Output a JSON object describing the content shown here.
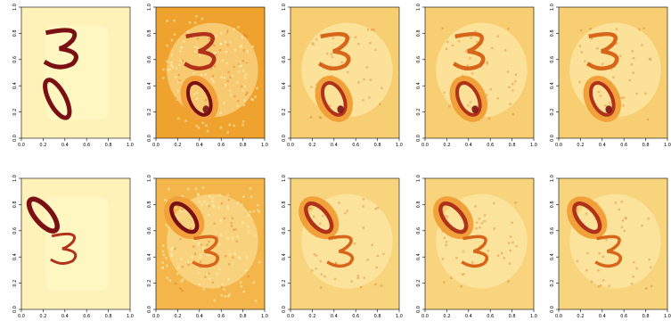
{
  "chart_data": {
    "type": "heatmap",
    "layout": {
      "rows": 2,
      "cols": 5
    },
    "x_ticks": [
      "0.0",
      "0.2",
      "0.4",
      "0.6",
      "0.8",
      "1.0"
    ],
    "y_ticks": [
      "0.0",
      "0.2",
      "0.4",
      "0.6",
      "0.8",
      "1.0"
    ],
    "xlim": [
      0,
      1
    ],
    "ylim": [
      0,
      1
    ],
    "palette": {
      "light": "#fff7c2",
      "pale": "#fde9a8",
      "mid": "#f6cb6e",
      "orange": "#f2a13a",
      "dark_orange": "#d7651a",
      "red": "#b0321a",
      "dark": "#7a0f14"
    },
    "panels": [
      {
        "row": 0,
        "col": 0,
        "kind": "input",
        "background": "#fff2b8",
        "digits": "3 over 0"
      },
      {
        "row": 0,
        "col": 1,
        "kind": "reconstruction",
        "background": "#f0a22f",
        "digits": "3 over 0"
      },
      {
        "row": 0,
        "col": 2,
        "kind": "reconstruction",
        "background": "#f7cf72",
        "digits": "3 over 0"
      },
      {
        "row": 0,
        "col": 3,
        "kind": "reconstruction",
        "background": "#f7cf72",
        "digits": "3 over 0"
      },
      {
        "row": 0,
        "col": 4,
        "kind": "reconstruction",
        "background": "#f7cf72",
        "digits": "3 over 0"
      },
      {
        "row": 1,
        "col": 0,
        "kind": "input",
        "background": "#fff2b8",
        "digits": "0 over 3"
      },
      {
        "row": 1,
        "col": 1,
        "kind": "reconstruction",
        "background": "#f4b64a",
        "digits": "0 over 3"
      },
      {
        "row": 1,
        "col": 2,
        "kind": "reconstruction",
        "background": "#f8d47c",
        "digits": "0 over 3"
      },
      {
        "row": 1,
        "col": 3,
        "kind": "reconstruction",
        "background": "#f8d47c",
        "digits": "0 over 3"
      },
      {
        "row": 1,
        "col": 4,
        "kind": "reconstruction",
        "background": "#f8d47c",
        "digits": "0 over 3"
      }
    ]
  }
}
